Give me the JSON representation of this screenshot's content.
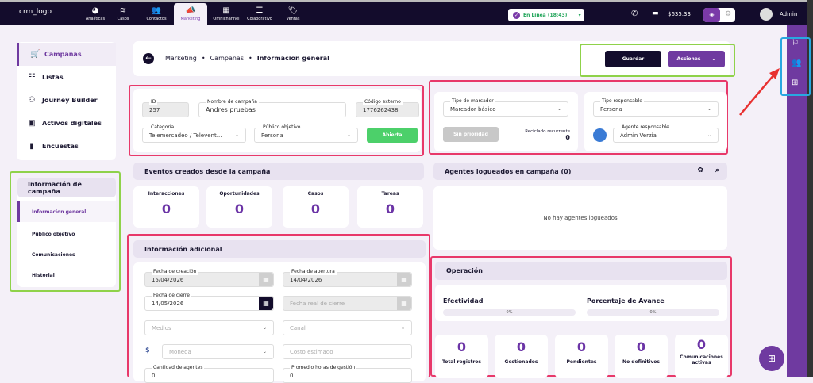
{
  "topbar": {
    "logo_alt": "crm_logo",
    "nav": [
      {
        "label": "Analíticas",
        "icon": "chart-pie-icon"
      },
      {
        "label": "Casos",
        "icon": "layers-icon"
      },
      {
        "label": "Contactos",
        "icon": "users-icon"
      },
      {
        "label": "Marketing",
        "icon": "megaphone-icon",
        "active": true
      },
      {
        "label": "Omnichannel",
        "icon": "grid-icon"
      },
      {
        "label": "Colaborativo",
        "icon": "list-icon"
      },
      {
        "label": "Ventas",
        "icon": "tag-dollar-icon"
      }
    ],
    "status": "En Línea (18:43)",
    "balance": "$635.33",
    "user": "Admin"
  },
  "sidebar": {
    "items": [
      {
        "label": "Campañas",
        "icon": "cart-icon",
        "active": true
      },
      {
        "label": "Listas",
        "icon": "list-icon"
      },
      {
        "label": "Journey Builder",
        "icon": "flow-icon"
      },
      {
        "label": "Activos digitales",
        "icon": "image-icon"
      },
      {
        "label": "Encuestas",
        "icon": "clipboard-icon"
      }
    ]
  },
  "campaign_nav": {
    "title": "Información de campaña",
    "items": [
      {
        "label": "Informacion general",
        "active": true
      },
      {
        "label": "Público objetivo"
      },
      {
        "label": "Comunicaciones"
      },
      {
        "label": "Historial"
      }
    ]
  },
  "breadcrumb": [
    "Marketing",
    "Campañas",
    "Informacion general"
  ],
  "actions": {
    "save": "Guardar",
    "actions": "Acciones"
  },
  "general": {
    "id_label": "ID",
    "id": "257",
    "name_label": "Nombre de campaña",
    "name": "Andres pruebas",
    "code_label": "Código externo",
    "code": "1776262438",
    "category_label": "Categoría",
    "category": "Telemercadeo / Televent...",
    "audience_label": "Público objetivo",
    "audience": "Persona",
    "status_button": "Abierta"
  },
  "dialer": {
    "type_label": "Tipo de marcador",
    "type": "Marcador básico",
    "priority": "Sin prioridad",
    "recycle_label": "Reciclado recurrente",
    "recycle": "0"
  },
  "responsible": {
    "type_label": "Tipo responsable",
    "type": "Persona",
    "agent_label": "Agente responsable",
    "agent": "Admin Verzia"
  },
  "events": {
    "title": "Eventos creados desde la campaña",
    "counters": [
      {
        "label": "Interacciones",
        "value": "0"
      },
      {
        "label": "Oportunidades",
        "value": "0"
      },
      {
        "label": "Casos",
        "value": "0"
      },
      {
        "label": "Tareas",
        "value": "0"
      }
    ]
  },
  "agents": {
    "title": "Agentes logueados en campaña (0)",
    "empty": "No hay agentes logueados"
  },
  "additional": {
    "title": "Información adicional",
    "created_label": "Fecha de creación",
    "created": "15/04/2026",
    "open_label": "Fecha de apertura",
    "open": "14/04/2026",
    "close_label": "Fecha de cierre",
    "close": "14/05/2026",
    "real_close_ph": "Fecha real de cierre",
    "media_ph": "Medios",
    "channel_ph": "Canal",
    "currency_ph": "Moneda",
    "cost_ph": "Costo estimado",
    "agents_label": "Cantidad de agentes",
    "agents": "0",
    "hours_label": "Promedio horas de gestión",
    "hours": "0"
  },
  "operation": {
    "title": "Operación",
    "effectiveness_label": "Efectividad",
    "effectiveness": "0%",
    "progress_label": "Porcentaje de Avance",
    "progress": "0%",
    "counters": [
      {
        "label": "Total registros",
        "value": "0"
      },
      {
        "label": "Gestionados",
        "value": "0"
      },
      {
        "label": "Pendientes",
        "value": "0"
      },
      {
        "label": "No definitivos",
        "value": "0"
      },
      {
        "label": "Comunicaciones activas",
        "value": "0"
      }
    ]
  },
  "colors": {
    "accent": "#6f3aa0",
    "nav_bg": "#130c2c",
    "highlight_pink": "#e8396a",
    "highlight_green": "#8fd24a",
    "highlight_blue": "#29a8e0",
    "annotation_arrow": "#e83030"
  }
}
